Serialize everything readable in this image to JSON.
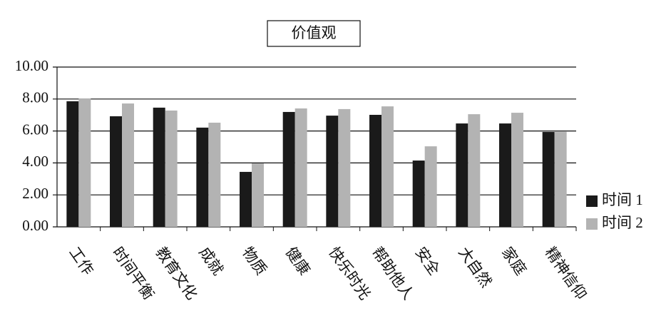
{
  "chart_data": {
    "type": "bar",
    "title": "价值观",
    "categories": [
      "工作",
      "时间平衡",
      "教育文化",
      "成就",
      "物质",
      "健康",
      "快乐时光",
      "帮助他人",
      "安全",
      "大自然",
      "家庭",
      "精神信仰"
    ],
    "series": [
      {
        "name": "时间 1",
        "color": "#1a1a1a",
        "values": [
          7.86,
          6.92,
          7.46,
          6.21,
          3.44,
          7.19,
          6.96,
          7.01,
          4.15,
          6.47,
          6.47,
          5.94
        ]
      },
      {
        "name": "时间 2",
        "color": "#b3b3b3",
        "values": [
          8.04,
          7.72,
          7.28,
          6.52,
          3.97,
          7.41,
          7.37,
          7.54,
          5.04,
          7.05,
          7.14,
          5.98
        ]
      }
    ],
    "ylim": [
      0,
      10
    ],
    "yticks": [
      {
        "value": 0,
        "label": "0.00"
      },
      {
        "value": 2,
        "label": "2.00"
      },
      {
        "value": 4,
        "label": "4.00"
      },
      {
        "value": 6,
        "label": "6.00"
      },
      {
        "value": 8,
        "label": "8.00"
      },
      {
        "value": 10,
        "label": "10.00"
      }
    ],
    "grid": true,
    "legend": "right"
  }
}
